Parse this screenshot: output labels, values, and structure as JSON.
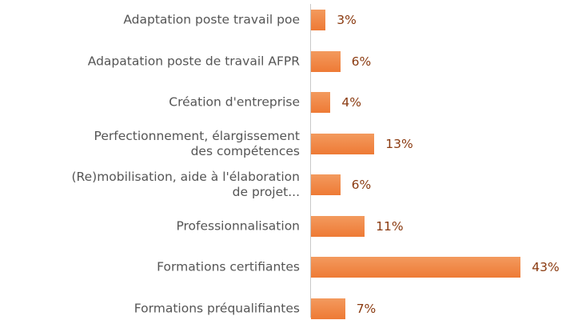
{
  "chart_data": {
    "type": "bar",
    "orientation": "horizontal",
    "categories": [
      "Adaptation poste travail poe",
      "Adapatation poste de travail AFPR",
      "Création d'entreprise",
      "Perfectionnement, élargissement\ndes compétences",
      "(Re)mobilisation, aide à l'élaboration\nde projet...",
      "Professionnalisation",
      "Formations certifiantes",
      "Formations préqualifiantes"
    ],
    "values": [
      3,
      6,
      4,
      13,
      6,
      11,
      43,
      7
    ],
    "value_labels": [
      "3%",
      "6%",
      "4%",
      "13%",
      "6%",
      "11%",
      "43%",
      "7%"
    ],
    "color": "#f07f3c"
  }
}
